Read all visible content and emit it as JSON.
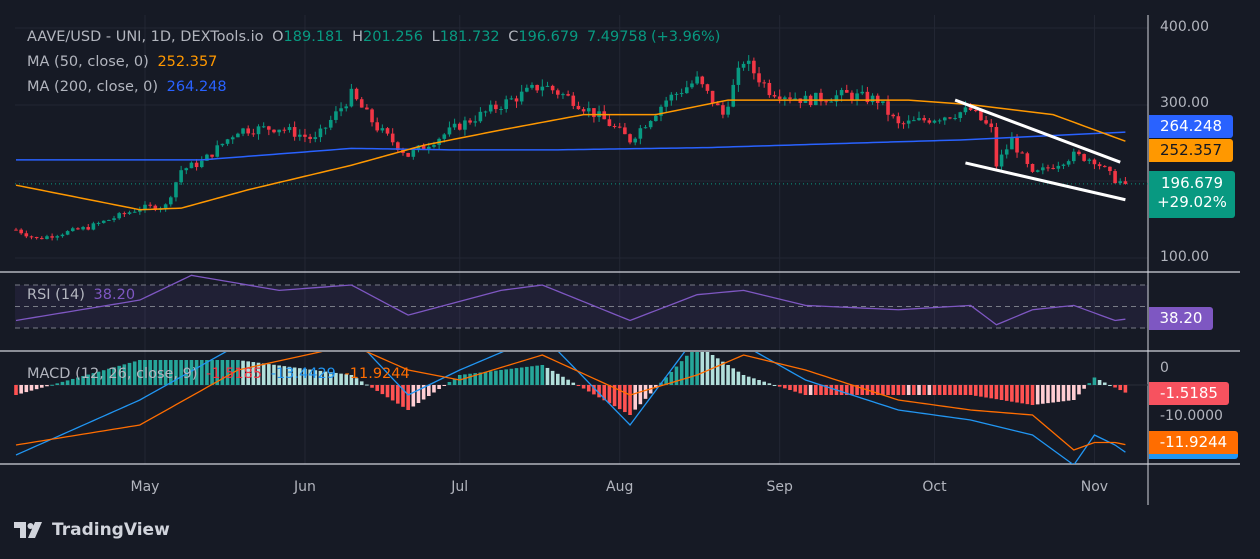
{
  "chart_data": {
    "type": "candlestick",
    "title": "AAVE/USD - UNI, 1D, DEXTools.io",
    "ohlc_last": {
      "open": "189.181",
      "high": "201.256",
      "low": "181.732",
      "close": "196.679",
      "change": "7.49758",
      "change_pct": "(+3.96%)"
    },
    "y_ticks": [
      "400.00",
      "300.00",
      "100.00"
    ],
    "ylim": [
      100,
      400
    ],
    "x_ticks": [
      {
        "date": "2024-05-01",
        "label": "May"
      },
      {
        "date": "2024-06-01",
        "label": "Jun"
      },
      {
        "date": "2024-07-01",
        "label": "Jul"
      },
      {
        "date": "2024-08-01",
        "label": "Aug"
      },
      {
        "date": "2024-09-01",
        "label": "Sep"
      },
      {
        "date": "2024-10-01",
        "label": "Oct"
      },
      {
        "date": "2024-11-01",
        "label": "Nov"
      }
    ],
    "price_close": [
      [
        "2024-04-06",
        137
      ],
      [
        "2024-04-10",
        125
      ],
      [
        "2024-04-20",
        140
      ],
      [
        "2024-04-30",
        165
      ],
      [
        "2024-05-05",
        168
      ],
      [
        "2024-05-08",
        215
      ],
      [
        "2024-05-12",
        225
      ],
      [
        "2024-05-19",
        267
      ],
      [
        "2024-05-27",
        270
      ],
      [
        "2024-06-03",
        254
      ],
      [
        "2024-06-10",
        313
      ],
      [
        "2024-06-15",
        270
      ],
      [
        "2024-06-21",
        234
      ],
      [
        "2024-07-01",
        273
      ],
      [
        "2024-07-09",
        300
      ],
      [
        "2024-07-17",
        326
      ],
      [
        "2024-07-23",
        306
      ],
      [
        "2024-07-29",
        280
      ],
      [
        "2024-08-03",
        254
      ],
      [
        "2024-08-10",
        306
      ],
      [
        "2024-08-16",
        332
      ],
      [
        "2024-08-21",
        287
      ],
      [
        "2024-08-25",
        358
      ],
      [
        "2024-08-30",
        319
      ],
      [
        "2024-09-06",
        306
      ],
      [
        "2024-09-14",
        313
      ],
      [
        "2024-09-20",
        306
      ],
      [
        "2024-09-24",
        273
      ],
      [
        "2024-10-04",
        287
      ],
      [
        "2024-10-08",
        293
      ],
      [
        "2024-10-12",
        267
      ],
      [
        "2024-10-13",
        221
      ],
      [
        "2024-10-16",
        254
      ],
      [
        "2024-10-20",
        208
      ],
      [
        "2024-10-28",
        234
      ],
      [
        "2024-11-01",
        228
      ],
      [
        "2024-11-05",
        202
      ],
      [
        "2024-11-07",
        196.679
      ]
    ],
    "ma50": {
      "label": "MA (50, close, 0)",
      "value": "252.357",
      "color": "#ff9800",
      "points": [
        [
          "2024-04-06",
          195
        ],
        [
          "2024-04-30",
          163
        ],
        [
          "2024-05-08",
          165
        ],
        [
          "2024-05-21",
          189
        ],
        [
          "2024-06-10",
          221
        ],
        [
          "2024-06-24",
          247
        ],
        [
          "2024-07-09",
          267
        ],
        [
          "2024-07-25",
          287
        ],
        [
          "2024-08-08",
          287
        ],
        [
          "2024-08-22",
          306
        ],
        [
          "2024-09-06",
          306
        ],
        [
          "2024-09-26",
          306
        ],
        [
          "2024-10-08",
          300
        ],
        [
          "2024-10-24",
          287
        ],
        [
          "2024-11-07",
          252.357
        ]
      ]
    },
    "ma200": {
      "label": "MA (200, close, 0)",
      "value": "264.248",
      "color": "#2962ff",
      "points": [
        [
          "2024-04-06",
          228
        ],
        [
          "2024-05-12",
          228
        ],
        [
          "2024-06-10",
          243
        ],
        [
          "2024-06-30",
          241
        ],
        [
          "2024-07-19",
          241
        ],
        [
          "2024-08-18",
          244
        ],
        [
          "2024-09-16",
          250
        ],
        [
          "2024-10-06",
          254
        ],
        [
          "2024-11-07",
          264.248
        ]
      ]
    },
    "trendlines": [
      {
        "color": "#ffffff",
        "from": [
          "2024-10-05",
          306
        ],
        "to": [
          "2024-11-06",
          225
        ]
      },
      {
        "color": "#ffffff",
        "from": [
          "2024-10-07",
          224
        ],
        "to": [
          "2024-11-07",
          176
        ]
      }
    ],
    "last_price_tag": {
      "value": "196.679",
      "change": "+29.02%",
      "color": "#089981"
    },
    "rsi": {
      "label": "RSI (14)",
      "value": "38.20",
      "color": "#7e57c2",
      "bands": [
        70,
        50,
        30
      ],
      "points": [
        [
          "2024-04-06",
          37
        ],
        [
          "2024-04-30",
          56
        ],
        [
          "2024-05-10",
          79
        ],
        [
          "2024-05-27",
          65
        ],
        [
          "2024-06-10",
          70
        ],
        [
          "2024-06-21",
          42
        ],
        [
          "2024-07-09",
          65
        ],
        [
          "2024-07-17",
          70
        ],
        [
          "2024-08-03",
          37
        ],
        [
          "2024-08-16",
          61
        ],
        [
          "2024-08-25",
          65
        ],
        [
          "2024-09-06",
          51
        ],
        [
          "2024-09-24",
          47
        ],
        [
          "2024-10-08",
          51
        ],
        [
          "2024-10-13",
          33
        ],
        [
          "2024-10-20",
          47
        ],
        [
          "2024-10-28",
          51
        ],
        [
          "2024-11-05",
          37
        ],
        [
          "2024-11-07",
          38.2
        ]
      ]
    },
    "macd": {
      "label": "MACD (12, 26, close, 9)",
      "hist_value": "-1.5185",
      "macd_value": "-13.4429",
      "signal_value": "-11.9244",
      "y_ticks": [
        "0",
        "-10.0000"
      ],
      "macd_color": "#2196f3",
      "signal_color": "#ff6d00",
      "macd_points": [
        [
          "2024-04-06",
          -14
        ],
        [
          "2024-04-30",
          -3
        ],
        [
          "2024-05-19",
          8
        ],
        [
          "2024-06-10",
          10
        ],
        [
          "2024-06-21",
          -2
        ],
        [
          "2024-07-01",
          3
        ],
        [
          "2024-07-17",
          10
        ],
        [
          "2024-08-03",
          -8
        ],
        [
          "2024-08-16",
          10
        ],
        [
          "2024-08-25",
          8
        ],
        [
          "2024-09-06",
          1
        ],
        [
          "2024-09-24",
          -5
        ],
        [
          "2024-10-08",
          -7
        ],
        [
          "2024-10-20",
          -10
        ],
        [
          "2024-10-28",
          -16
        ],
        [
          "2024-11-01",
          -10
        ],
        [
          "2024-11-05",
          -12
        ],
        [
          "2024-11-07",
          -13.4429
        ]
      ],
      "signal_points": [
        [
          "2024-04-06",
          -12
        ],
        [
          "2024-04-30",
          -8
        ],
        [
          "2024-05-19",
          3
        ],
        [
          "2024-06-10",
          8
        ],
        [
          "2024-06-21",
          3
        ],
        [
          "2024-07-01",
          1
        ],
        [
          "2024-07-17",
          6
        ],
        [
          "2024-08-03",
          -2
        ],
        [
          "2024-08-16",
          2
        ],
        [
          "2024-08-25",
          6
        ],
        [
          "2024-09-06",
          3
        ],
        [
          "2024-09-24",
          -3
        ],
        [
          "2024-10-08",
          -5
        ],
        [
          "2024-10-20",
          -6
        ],
        [
          "2024-10-28",
          -13
        ],
        [
          "2024-11-01",
          -11.5
        ],
        [
          "2024-11-05",
          -11.5
        ],
        [
          "2024-11-07",
          -11.9244
        ]
      ]
    },
    "colors": {
      "up": "#089981",
      "down": "#f23645",
      "hist_up_strong": "#26a69a",
      "hist_up_weak": "#b2dfdb",
      "hist_down_strong": "#ff5252",
      "hist_down_weak": "#ffcdd2",
      "background": "#161a25"
    }
  },
  "branding": {
    "logo_text": "TradingView"
  }
}
